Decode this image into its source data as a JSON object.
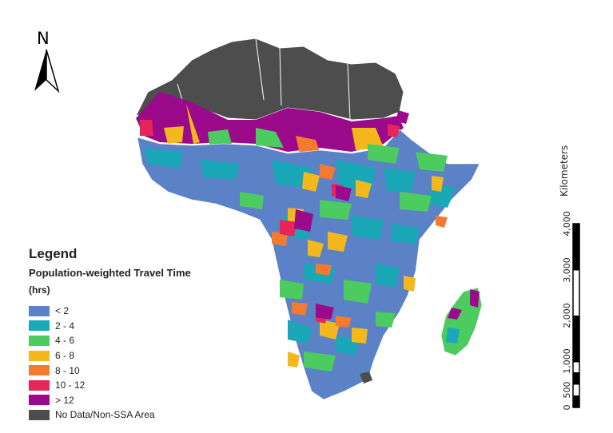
{
  "north_label": "N",
  "legend": {
    "title": "Legend",
    "subtitle": "Population-weighted Travel Time",
    "unit": "(hrs)",
    "items": [
      {
        "label": "< 2",
        "color": "#5b82c6"
      },
      {
        "label": "2 - 4",
        "color": "#1aa7b8"
      },
      {
        "label": "4 - 6",
        "color": "#4ccb5e"
      },
      {
        "label": "6 - 8",
        "color": "#f4b81c"
      },
      {
        "label": "8 - 10",
        "color": "#f47a2f"
      },
      {
        "label": "10 - 12",
        "color": "#e8255a"
      },
      {
        "label": "> 12",
        "color": "#9a0a8a"
      },
      {
        "label": "No Data/Non-SSA Area",
        "color": "#4d4d4d"
      }
    ]
  },
  "scale_bar": {
    "units": "Kilometers",
    "labels": [
      "0",
      "500",
      "1,000",
      "2,000",
      "3,000",
      "4,000"
    ]
  }
}
